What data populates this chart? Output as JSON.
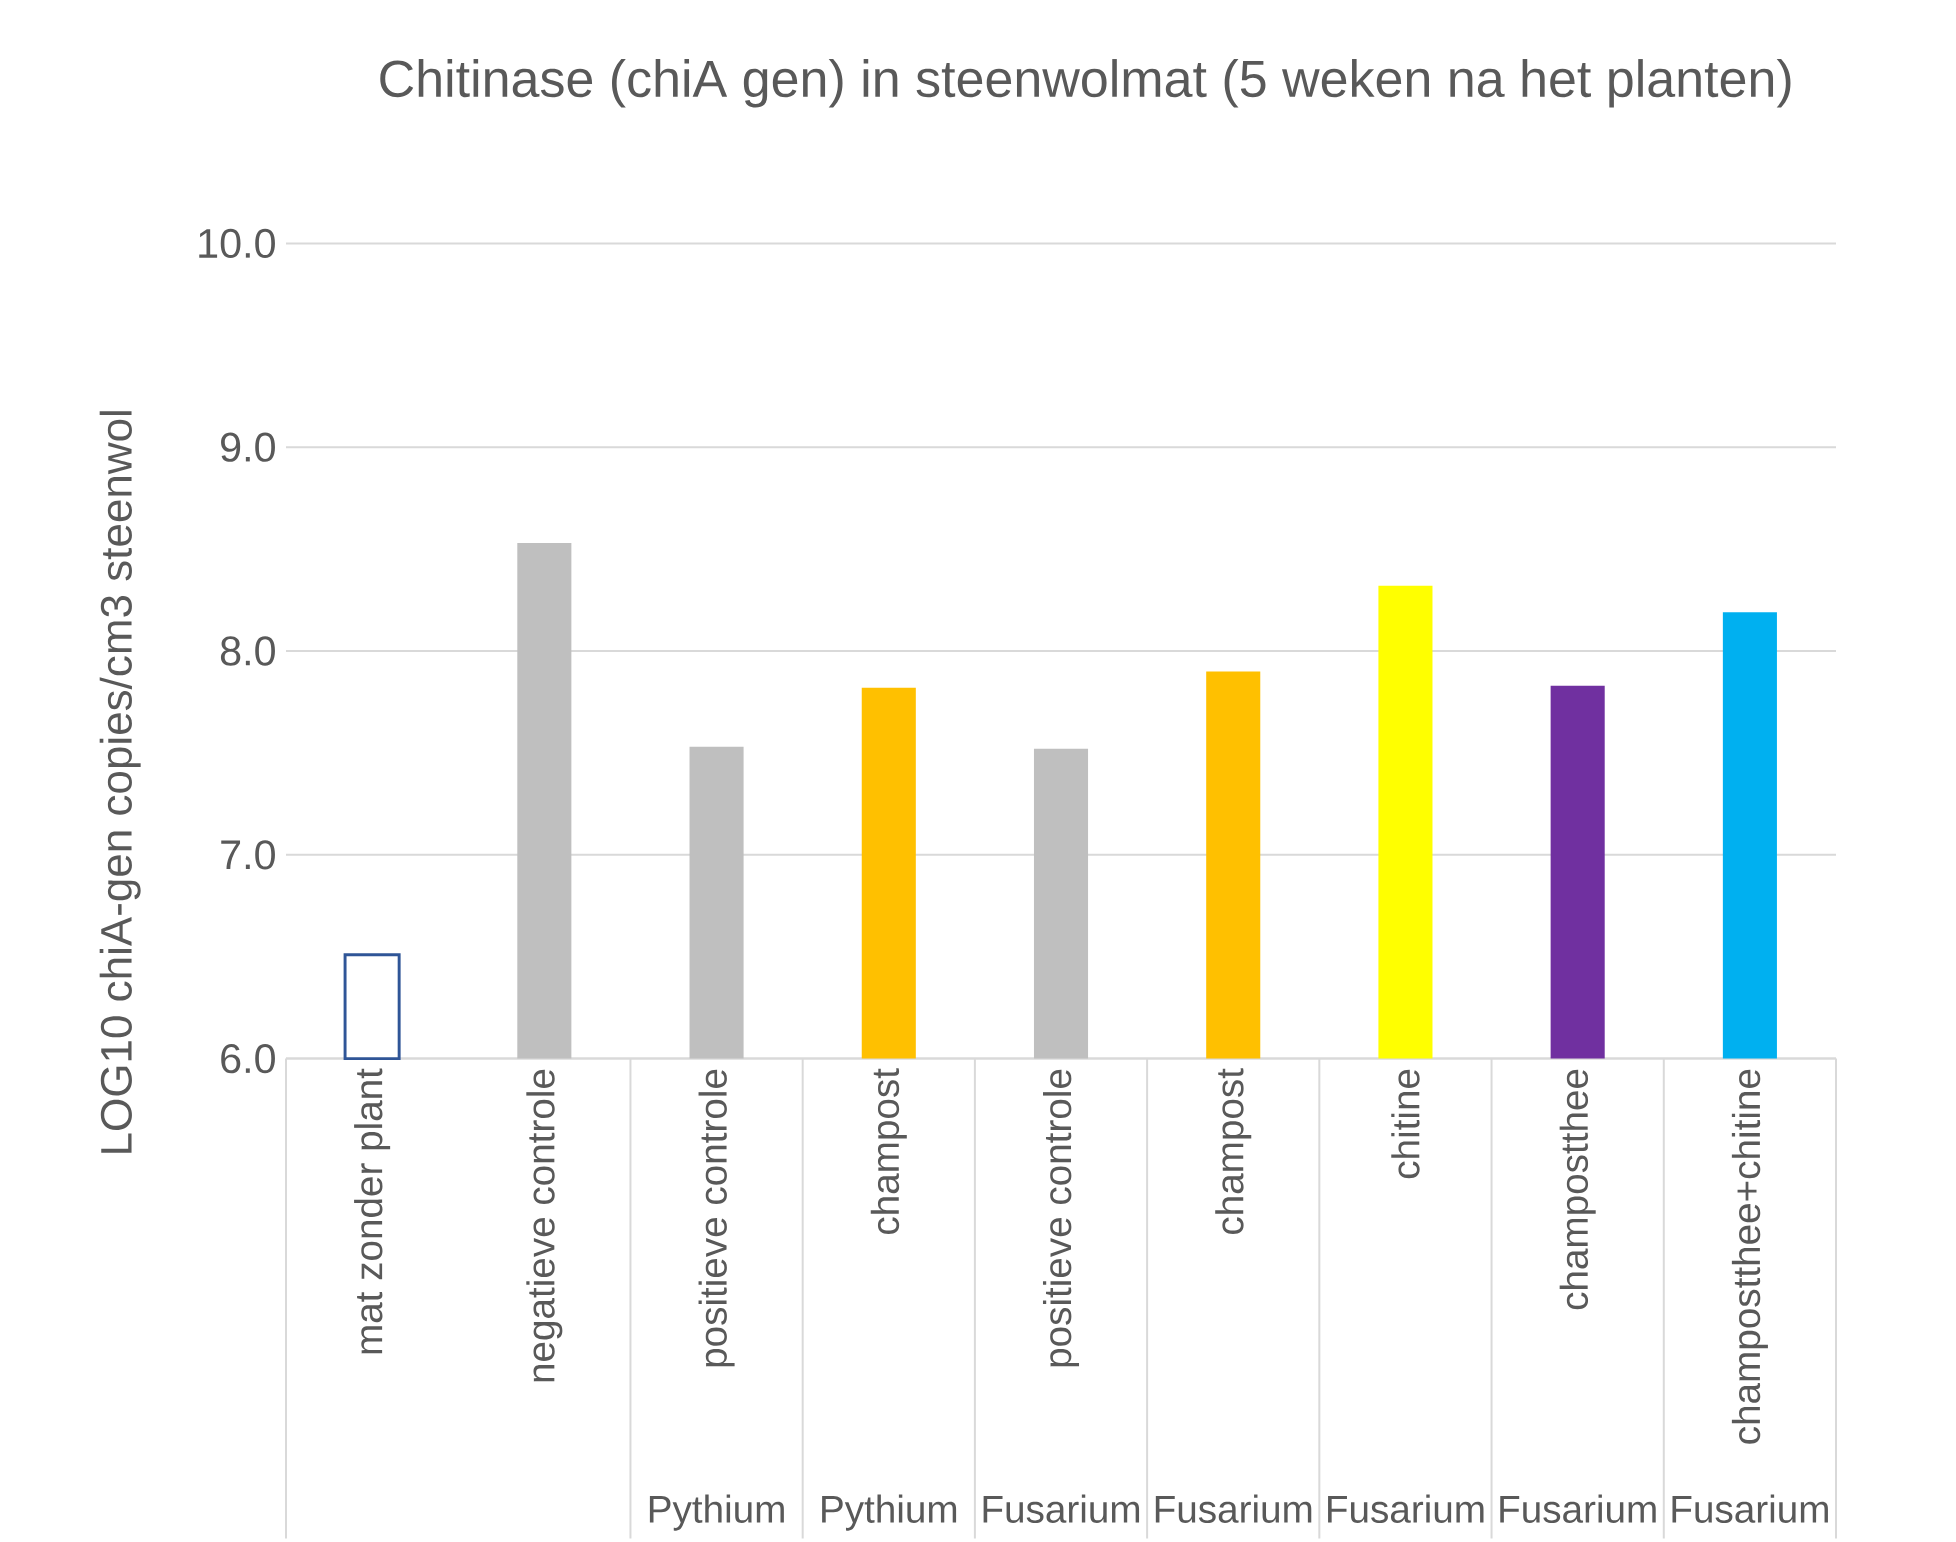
{
  "chart_data": {
    "type": "bar",
    "title": "Chitinase (chiA gen) in steenwolmat (5 weken na het planten)",
    "ylabel": "LOG10 chiA-gen copies/cm3 steenwol",
    "categories": [
      "mat zonder plant",
      "negatieve controle",
      "positieve controle",
      "champost",
      "positieve controle",
      "champost",
      "chitine",
      "champostthee",
      "champostthee+chitine"
    ],
    "values": [
      6.51,
      8.53,
      7.53,
      7.82,
      7.52,
      7.9,
      8.32,
      7.83,
      8.19
    ],
    "colors": [
      "#ffffff",
      "#bfbfbf",
      "#bfbfbf",
      "#ffc000",
      "#bfbfbf",
      "#ffc000",
      "#ffff00",
      "#7030a0",
      "#00b0f0"
    ],
    "ylim": [
      6,
      10
    ],
    "yticks": [
      {
        "value": 6,
        "label": "6.0"
      },
      {
        "value": 7,
        "label": "7.0"
      },
      {
        "value": 8,
        "label": "8.0"
      },
      {
        "value": 9,
        "label": "9.0"
      },
      {
        "value": 10,
        "label": "10.0"
      }
    ],
    "grid": "y",
    "annotations": [
      "Pythium",
      "Pythium",
      "Fusarium",
      "Fusarium",
      "Fusarium",
      "Fusarium",
      "Fusarium"
    ]
  }
}
